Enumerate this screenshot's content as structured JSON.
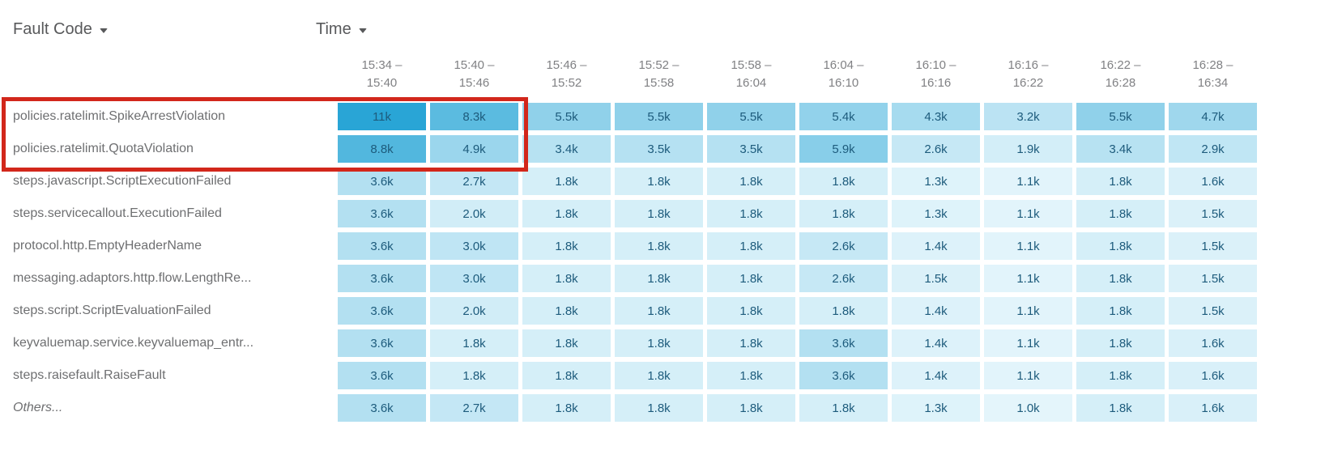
{
  "header": {
    "fault_code_label": "Fault Code",
    "time_label": "Time"
  },
  "columns": [
    {
      "line1": "15:34 –",
      "line2": "15:40"
    },
    {
      "line1": "15:40 –",
      "line2": "15:46"
    },
    {
      "line1": "15:46 –",
      "line2": "15:52"
    },
    {
      "line1": "15:52 –",
      "line2": "15:58"
    },
    {
      "line1": "15:58 –",
      "line2": "16:04"
    },
    {
      "line1": "16:04 –",
      "line2": "16:10"
    },
    {
      "line1": "16:10 –",
      "line2": "16:16"
    },
    {
      "line1": "16:16 –",
      "line2": "16:22"
    },
    {
      "line1": "16:22 –",
      "line2": "16:28"
    },
    {
      "line1": "16:28 –",
      "line2": "16:34"
    }
  ],
  "rows": [
    {
      "label": "policies.ratelimit.SpikeArrestViolation",
      "italic": false,
      "values": [
        "11k",
        "8.3k",
        "5.5k",
        "5.5k",
        "5.5k",
        "5.4k",
        "4.3k",
        "3.2k",
        "5.5k",
        "4.7k"
      ]
    },
    {
      "label": "policies.ratelimit.QuotaViolation",
      "italic": false,
      "values": [
        "8.8k",
        "4.9k",
        "3.4k",
        "3.5k",
        "3.5k",
        "5.9k",
        "2.6k",
        "1.9k",
        "3.4k",
        "2.9k"
      ]
    },
    {
      "label": "steps.javascript.ScriptExecutionFailed",
      "italic": false,
      "values": [
        "3.6k",
        "2.7k",
        "1.8k",
        "1.8k",
        "1.8k",
        "1.8k",
        "1.3k",
        "1.1k",
        "1.8k",
        "1.6k"
      ]
    },
    {
      "label": "steps.servicecallout.ExecutionFailed",
      "italic": false,
      "values": [
        "3.6k",
        "2.0k",
        "1.8k",
        "1.8k",
        "1.8k",
        "1.8k",
        "1.3k",
        "1.1k",
        "1.8k",
        "1.5k"
      ]
    },
    {
      "label": "protocol.http.EmptyHeaderName",
      "italic": false,
      "values": [
        "3.6k",
        "3.0k",
        "1.8k",
        "1.8k",
        "1.8k",
        "2.6k",
        "1.4k",
        "1.1k",
        "1.8k",
        "1.5k"
      ]
    },
    {
      "label": "messaging.adaptors.http.flow.LengthRe...",
      "italic": false,
      "values": [
        "3.6k",
        "3.0k",
        "1.8k",
        "1.8k",
        "1.8k",
        "2.6k",
        "1.5k",
        "1.1k",
        "1.8k",
        "1.5k"
      ]
    },
    {
      "label": "steps.script.ScriptEvaluationFailed",
      "italic": false,
      "values": [
        "3.6k",
        "2.0k",
        "1.8k",
        "1.8k",
        "1.8k",
        "1.8k",
        "1.4k",
        "1.1k",
        "1.8k",
        "1.5k"
      ]
    },
    {
      "label": "keyvaluemap.service.keyvaluemap_entr...",
      "italic": false,
      "values": [
        "3.6k",
        "1.8k",
        "1.8k",
        "1.8k",
        "1.8k",
        "3.6k",
        "1.4k",
        "1.1k",
        "1.8k",
        "1.6k"
      ]
    },
    {
      "label": "steps.raisefault.RaiseFault",
      "italic": false,
      "values": [
        "3.6k",
        "1.8k",
        "1.8k",
        "1.8k",
        "1.8k",
        "3.6k",
        "1.4k",
        "1.1k",
        "1.8k",
        "1.6k"
      ]
    },
    {
      "label": "Others...",
      "italic": true,
      "values": [
        "3.6k",
        "2.7k",
        "1.8k",
        "1.8k",
        "1.8k",
        "1.8k",
        "1.3k",
        "1.0k",
        "1.8k",
        "1.6k"
      ]
    }
  ],
  "heat": {
    "min": 1.0,
    "max": 11.0,
    "low_color": "#e4f5fb",
    "high_color": "#29a5d6",
    "cell_text_color": "#1d5b7c"
  },
  "highlight": {
    "color": "#d2271b",
    "note": "red rectangle around first two rows, row labels and first two time columns"
  },
  "chart_data": {
    "type": "heatmap",
    "title": "",
    "xlabel": "Time",
    "ylabel": "Fault Code",
    "x_categories": [
      "15:34 – 15:40",
      "15:40 – 15:46",
      "15:46 – 15:52",
      "15:52 – 15:58",
      "15:58 – 16:04",
      "16:04 – 16:10",
      "16:10 – 16:16",
      "16:16 – 16:22",
      "16:22 – 16:28",
      "16:28 – 16:34"
    ],
    "y_categories": [
      "policies.ratelimit.SpikeArrestViolation",
      "policies.ratelimit.QuotaViolation",
      "steps.javascript.ScriptExecutionFailed",
      "steps.servicecallout.ExecutionFailed",
      "protocol.http.EmptyHeaderName",
      "messaging.adaptors.http.flow.LengthRe...",
      "steps.script.ScriptEvaluationFailed",
      "keyvaluemap.service.keyvaluemap_entr...",
      "steps.raisefault.RaiseFault",
      "Others..."
    ],
    "values_thousands": [
      [
        11,
        8.3,
        5.5,
        5.5,
        5.5,
        5.4,
        4.3,
        3.2,
        5.5,
        4.7
      ],
      [
        8.8,
        4.9,
        3.4,
        3.5,
        3.5,
        5.9,
        2.6,
        1.9,
        3.4,
        2.9
      ],
      [
        3.6,
        2.7,
        1.8,
        1.8,
        1.8,
        1.8,
        1.3,
        1.1,
        1.8,
        1.6
      ],
      [
        3.6,
        2.0,
        1.8,
        1.8,
        1.8,
        1.8,
        1.3,
        1.1,
        1.8,
        1.5
      ],
      [
        3.6,
        3.0,
        1.8,
        1.8,
        1.8,
        2.6,
        1.4,
        1.1,
        1.8,
        1.5
      ],
      [
        3.6,
        3.0,
        1.8,
        1.8,
        1.8,
        2.6,
        1.5,
        1.1,
        1.8,
        1.5
      ],
      [
        3.6,
        2.0,
        1.8,
        1.8,
        1.8,
        1.8,
        1.4,
        1.1,
        1.8,
        1.5
      ],
      [
        3.6,
        1.8,
        1.8,
        1.8,
        1.8,
        3.6,
        1.4,
        1.1,
        1.8,
        1.6
      ],
      [
        3.6,
        1.8,
        1.8,
        1.8,
        1.8,
        3.6,
        1.4,
        1.1,
        1.8,
        1.6
      ],
      [
        3.6,
        2.7,
        1.8,
        1.8,
        1.8,
        1.8,
        1.3,
        1.0,
        1.8,
        1.6
      ]
    ],
    "color_scale": {
      "low": "#e4f5fb",
      "high": "#29a5d6"
    },
    "legend": "none",
    "grid": "off"
  }
}
